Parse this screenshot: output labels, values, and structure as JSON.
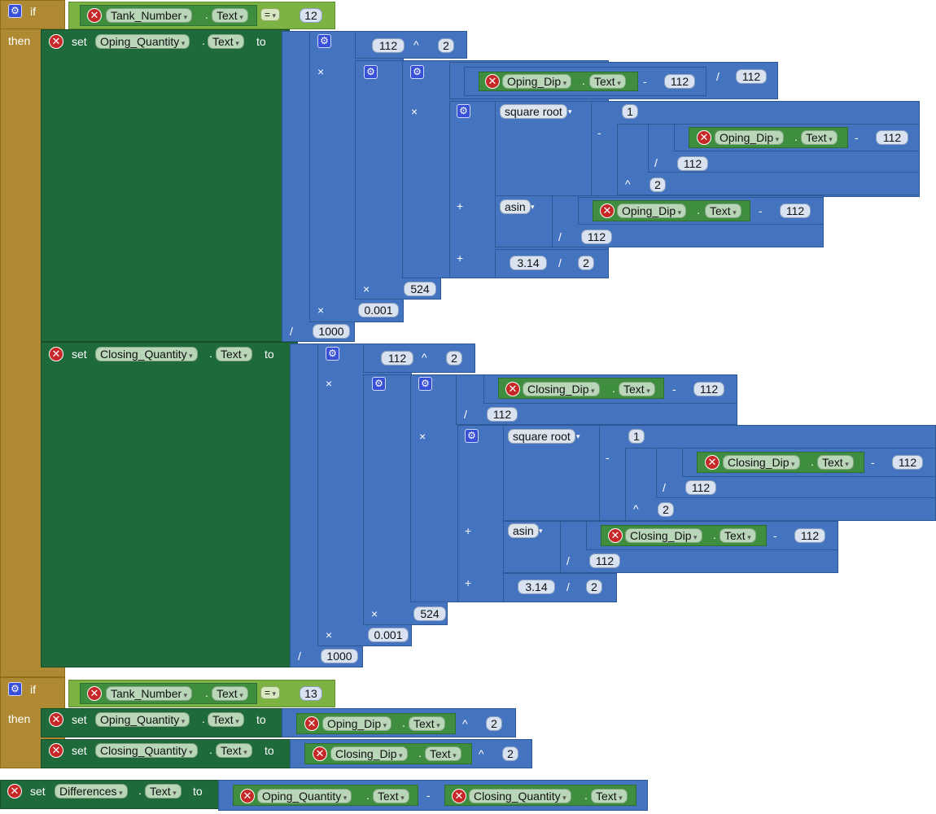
{
  "labels": {
    "if": "if",
    "then": "then",
    "set": "set",
    "to": "to",
    "dot": "."
  },
  "icons": {
    "error": "error-icon",
    "mutator": "gear-icon"
  },
  "components": {
    "tank_number": "Tank_Number",
    "text": "Text",
    "oping_quantity": "Oping_Quantity",
    "oping_dip": "Oping_Dip",
    "closing_quantity": "Closing_Quantity",
    "closing_dip": "Closing_Dip",
    "differences": "Differences"
  },
  "functions": {
    "sqrt": "square root",
    "asin": "asin"
  },
  "operators": {
    "eq": "=",
    "pow": "^",
    "times": "×",
    "div": "/",
    "minus": "-",
    "plus": "+"
  },
  "numbers": {
    "n12": "12",
    "n13": "13",
    "n112": "112",
    "n2": "2",
    "n1": "1",
    "n314": "3.14",
    "n524": "524",
    "n0001": "0.001",
    "n1000": "1000"
  }
}
